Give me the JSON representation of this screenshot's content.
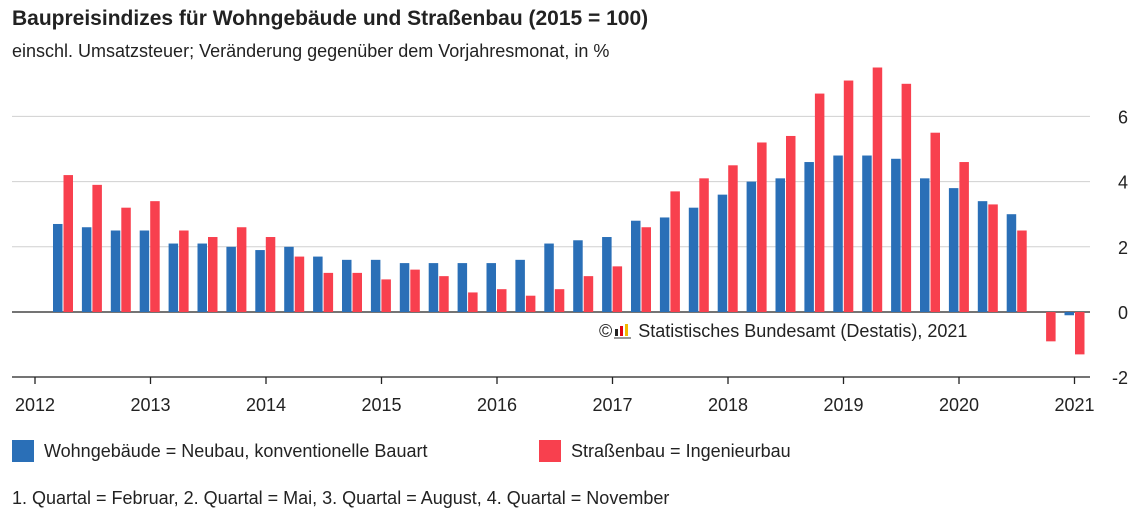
{
  "header": {
    "title": "Baupreisindizes für Wohngebäude und Straßenbau (2015 = 100)",
    "subtitle": "einschl. Umsatzsteuer; Veränderung gegenüber dem Vorjahresmonat, in %"
  },
  "copyright": {
    "symbol": "©",
    "text": "Statistisches Bundesamt (Destatis), 2021"
  },
  "legend": {
    "series1": "Wohngebäude = Neubau, konventionelle Bauart",
    "series2": "Straßenbau = Ingenieurbau"
  },
  "footnote": "1. Quartal = Februar, 2. Quartal = Mai, 3. Quartal = August, 4. Quartal = November",
  "colors": {
    "wohngebaeude": "#2a6fb7",
    "strassenbau": "#f8404e",
    "grid": "#d0d0d0",
    "axis": "#222222"
  },
  "chart_data": {
    "type": "bar",
    "title": "Baupreisindizes für Wohngebäude und Straßenbau (2015 = 100)",
    "subtitle": "einschl. Umsatzsteuer; Veränderung gegenüber dem Vorjahresmonat, in %",
    "categories": [
      "2012 Q2",
      "2012 Q3",
      "2012 Q4",
      "2013 Q1",
      "2013 Q2",
      "2013 Q3",
      "2013 Q4",
      "2014 Q1",
      "2014 Q2",
      "2014 Q3",
      "2014 Q4",
      "2015 Q1",
      "2015 Q2",
      "2015 Q3",
      "2015 Q4",
      "2016 Q1",
      "2016 Q2",
      "2016 Q3",
      "2016 Q4",
      "2017 Q1",
      "2017 Q2",
      "2017 Q3",
      "2017 Q4",
      "2018 Q1",
      "2018 Q2",
      "2018 Q3",
      "2018 Q4",
      "2019 Q1",
      "2019 Q2",
      "2019 Q3",
      "2019 Q4",
      "2020 Q1",
      "2020 Q2",
      "2020 Q3",
      "2020 Q4",
      "2021 Q1"
    ],
    "series": [
      {
        "name": "Wohngebäude = Neubau, konventionelle Bauart",
        "values": [
          2.7,
          2.6,
          2.5,
          2.5,
          2.1,
          2.1,
          2.0,
          1.9,
          2.0,
          1.7,
          1.6,
          1.6,
          1.5,
          1.5,
          1.5,
          1.5,
          1.6,
          2.1,
          2.2,
          2.3,
          2.8,
          2.9,
          3.2,
          3.6,
          4.0,
          4.1,
          4.6,
          4.8,
          4.8,
          4.7,
          4.1,
          3.8,
          3.4,
          3.0,
          null,
          -0.1
        ]
      },
      {
        "name": "Straßenbau = Ingenieurbau",
        "values": [
          4.2,
          3.9,
          3.2,
          3.4,
          2.5,
          2.3,
          2.6,
          2.3,
          1.7,
          1.2,
          1.2,
          1.0,
          1.3,
          1.1,
          0.6,
          0.7,
          0.5,
          0.7,
          1.1,
          1.4,
          2.6,
          3.7,
          4.1,
          4.5,
          5.2,
          5.4,
          6.7,
          7.1,
          7.5,
          7.0,
          5.5,
          4.6,
          3.3,
          2.5,
          -0.9,
          -1.3
        ]
      }
    ],
    "x_ticks": [
      "2012",
      "2013",
      "2014",
      "2015",
      "2016",
      "2017",
      "2018",
      "2019",
      "2020",
      "2021"
    ],
    "y_ticks": [
      -2,
      0,
      2,
      4,
      6
    ],
    "ylim": [
      -2,
      8
    ],
    "grid": true,
    "legend_position": "bottom",
    "y_axis_side": "right"
  }
}
